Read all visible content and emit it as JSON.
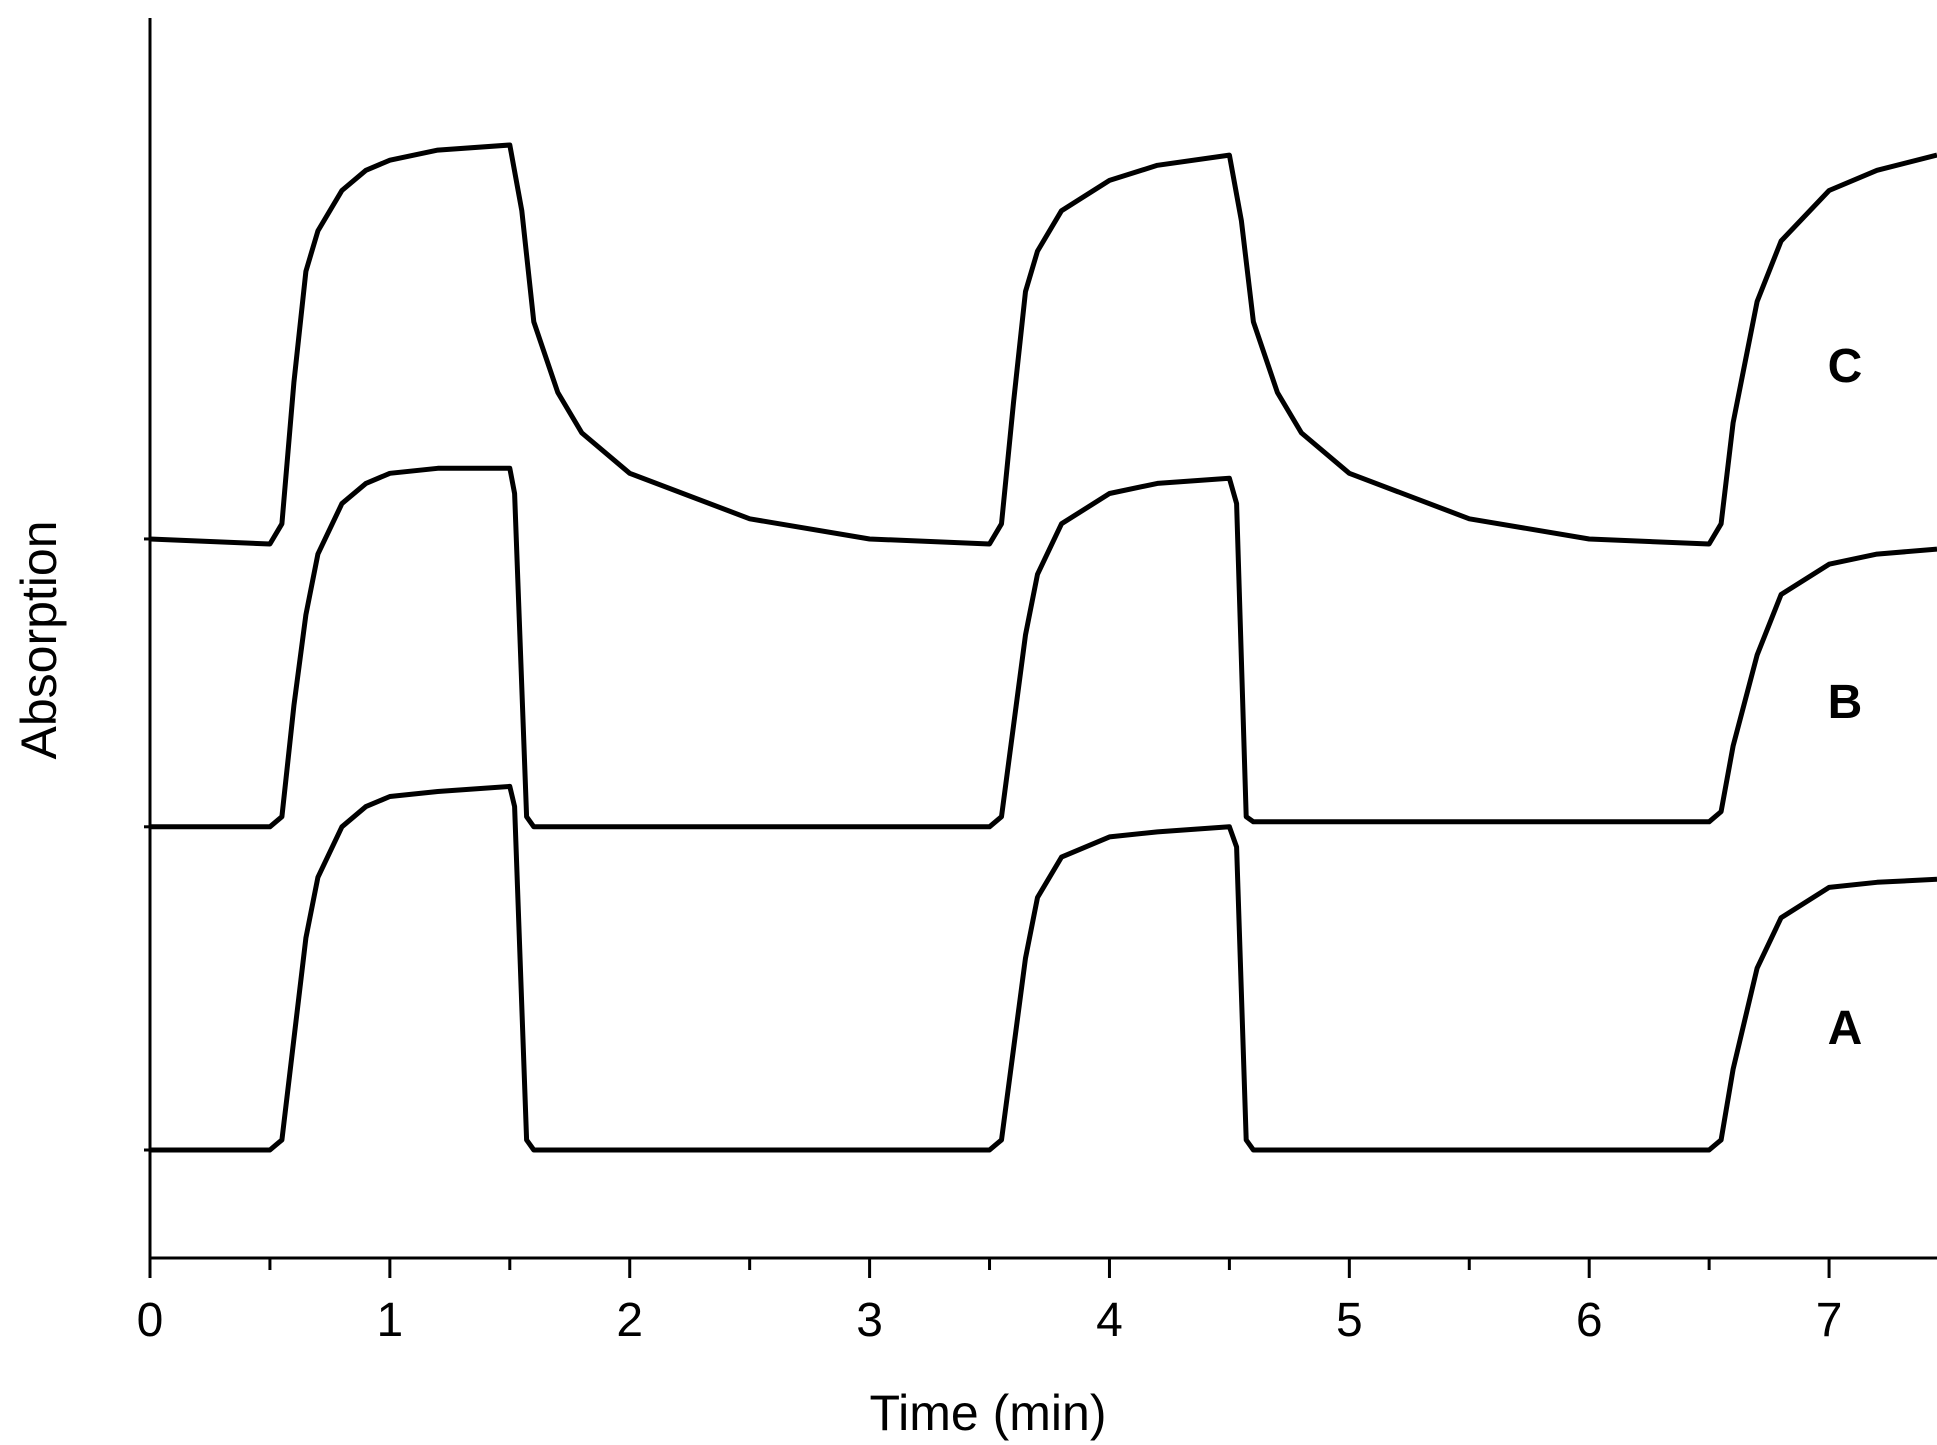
{
  "chart_data": {
    "type": "line",
    "title": "",
    "xlabel": "Time (min)",
    "ylabel": "Absorption",
    "xlim": [
      0,
      7.45
    ],
    "ylim": [
      0,
      1
    ],
    "x_ticks": [
      "0",
      "1",
      "2",
      "3",
      "4",
      "5",
      "6",
      "7"
    ],
    "grid": false,
    "legend": "none",
    "series": [
      {
        "name": "A",
        "color": "#000000",
        "points": [
          [
            0.0,
            0.0
          ],
          [
            0.5,
            0.0
          ],
          [
            0.55,
            0.01
          ],
          [
            0.6,
            0.11
          ],
          [
            0.65,
            0.21
          ],
          [
            0.7,
            0.27
          ],
          [
            0.8,
            0.32
          ],
          [
            0.9,
            0.34
          ],
          [
            1.0,
            0.35
          ],
          [
            1.2,
            0.355
          ],
          [
            1.5,
            0.36
          ],
          [
            1.52,
            0.34
          ],
          [
            1.57,
            0.01
          ],
          [
            1.6,
            0.0
          ],
          [
            3.5,
            0.0
          ],
          [
            3.55,
            0.01
          ],
          [
            3.6,
            0.1
          ],
          [
            3.65,
            0.19
          ],
          [
            3.7,
            0.25
          ],
          [
            3.8,
            0.29
          ],
          [
            4.0,
            0.31
          ],
          [
            4.2,
            0.315
          ],
          [
            4.5,
            0.32
          ],
          [
            4.53,
            0.3
          ],
          [
            4.57,
            0.01
          ],
          [
            4.6,
            0.0
          ],
          [
            6.5,
            0.0
          ],
          [
            6.55,
            0.01
          ],
          [
            6.6,
            0.08
          ],
          [
            6.7,
            0.18
          ],
          [
            6.8,
            0.23
          ],
          [
            7.0,
            0.26
          ],
          [
            7.2,
            0.265
          ],
          [
            7.45,
            0.268
          ]
        ]
      },
      {
        "name": "B",
        "color": "#000000",
        "points": [
          [
            0.0,
            0.32
          ],
          [
            0.5,
            0.32
          ],
          [
            0.55,
            0.33
          ],
          [
            0.6,
            0.44
          ],
          [
            0.65,
            0.53
          ],
          [
            0.7,
            0.59
          ],
          [
            0.8,
            0.64
          ],
          [
            0.9,
            0.66
          ],
          [
            1.0,
            0.67
          ],
          [
            1.2,
            0.675
          ],
          [
            1.5,
            0.675
          ],
          [
            1.52,
            0.65
          ],
          [
            1.57,
            0.33
          ],
          [
            1.6,
            0.32
          ],
          [
            3.5,
            0.32
          ],
          [
            3.55,
            0.33
          ],
          [
            3.6,
            0.42
          ],
          [
            3.65,
            0.51
          ],
          [
            3.7,
            0.57
          ],
          [
            3.8,
            0.62
          ],
          [
            4.0,
            0.65
          ],
          [
            4.2,
            0.66
          ],
          [
            4.5,
            0.665
          ],
          [
            4.53,
            0.64
          ],
          [
            4.57,
            0.33
          ],
          [
            4.6,
            0.325
          ],
          [
            6.5,
            0.325
          ],
          [
            6.55,
            0.335
          ],
          [
            6.6,
            0.4
          ],
          [
            6.7,
            0.49
          ],
          [
            6.8,
            0.55
          ],
          [
            7.0,
            0.58
          ],
          [
            7.2,
            0.59
          ],
          [
            7.45,
            0.595
          ]
        ]
      },
      {
        "name": "C",
        "color": "#000000",
        "points": [
          [
            0.0,
            0.605
          ],
          [
            0.5,
            0.6
          ],
          [
            0.55,
            0.62
          ],
          [
            0.6,
            0.76
          ],
          [
            0.65,
            0.87
          ],
          [
            0.7,
            0.91
          ],
          [
            0.8,
            0.95
          ],
          [
            0.9,
            0.97
          ],
          [
            1.0,
            0.98
          ],
          [
            1.2,
            0.99
          ],
          [
            1.5,
            0.995
          ],
          [
            1.55,
            0.93
          ],
          [
            1.6,
            0.82
          ],
          [
            1.7,
            0.75
          ],
          [
            1.8,
            0.71
          ],
          [
            2.0,
            0.67
          ],
          [
            2.5,
            0.625
          ],
          [
            3.0,
            0.605
          ],
          [
            3.5,
            0.6
          ],
          [
            3.55,
            0.62
          ],
          [
            3.6,
            0.74
          ],
          [
            3.65,
            0.85
          ],
          [
            3.7,
            0.89
          ],
          [
            3.8,
            0.93
          ],
          [
            4.0,
            0.96
          ],
          [
            4.2,
            0.975
          ],
          [
            4.5,
            0.985
          ],
          [
            4.55,
            0.92
          ],
          [
            4.6,
            0.82
          ],
          [
            4.7,
            0.75
          ],
          [
            4.8,
            0.71
          ],
          [
            5.0,
            0.67
          ],
          [
            5.5,
            0.625
          ],
          [
            6.0,
            0.605
          ],
          [
            6.5,
            0.6
          ],
          [
            6.55,
            0.62
          ],
          [
            6.6,
            0.72
          ],
          [
            6.7,
            0.84
          ],
          [
            6.8,
            0.9
          ],
          [
            7.0,
            0.95
          ],
          [
            7.2,
            0.97
          ],
          [
            7.45,
            0.985
          ]
        ]
      }
    ]
  }
}
